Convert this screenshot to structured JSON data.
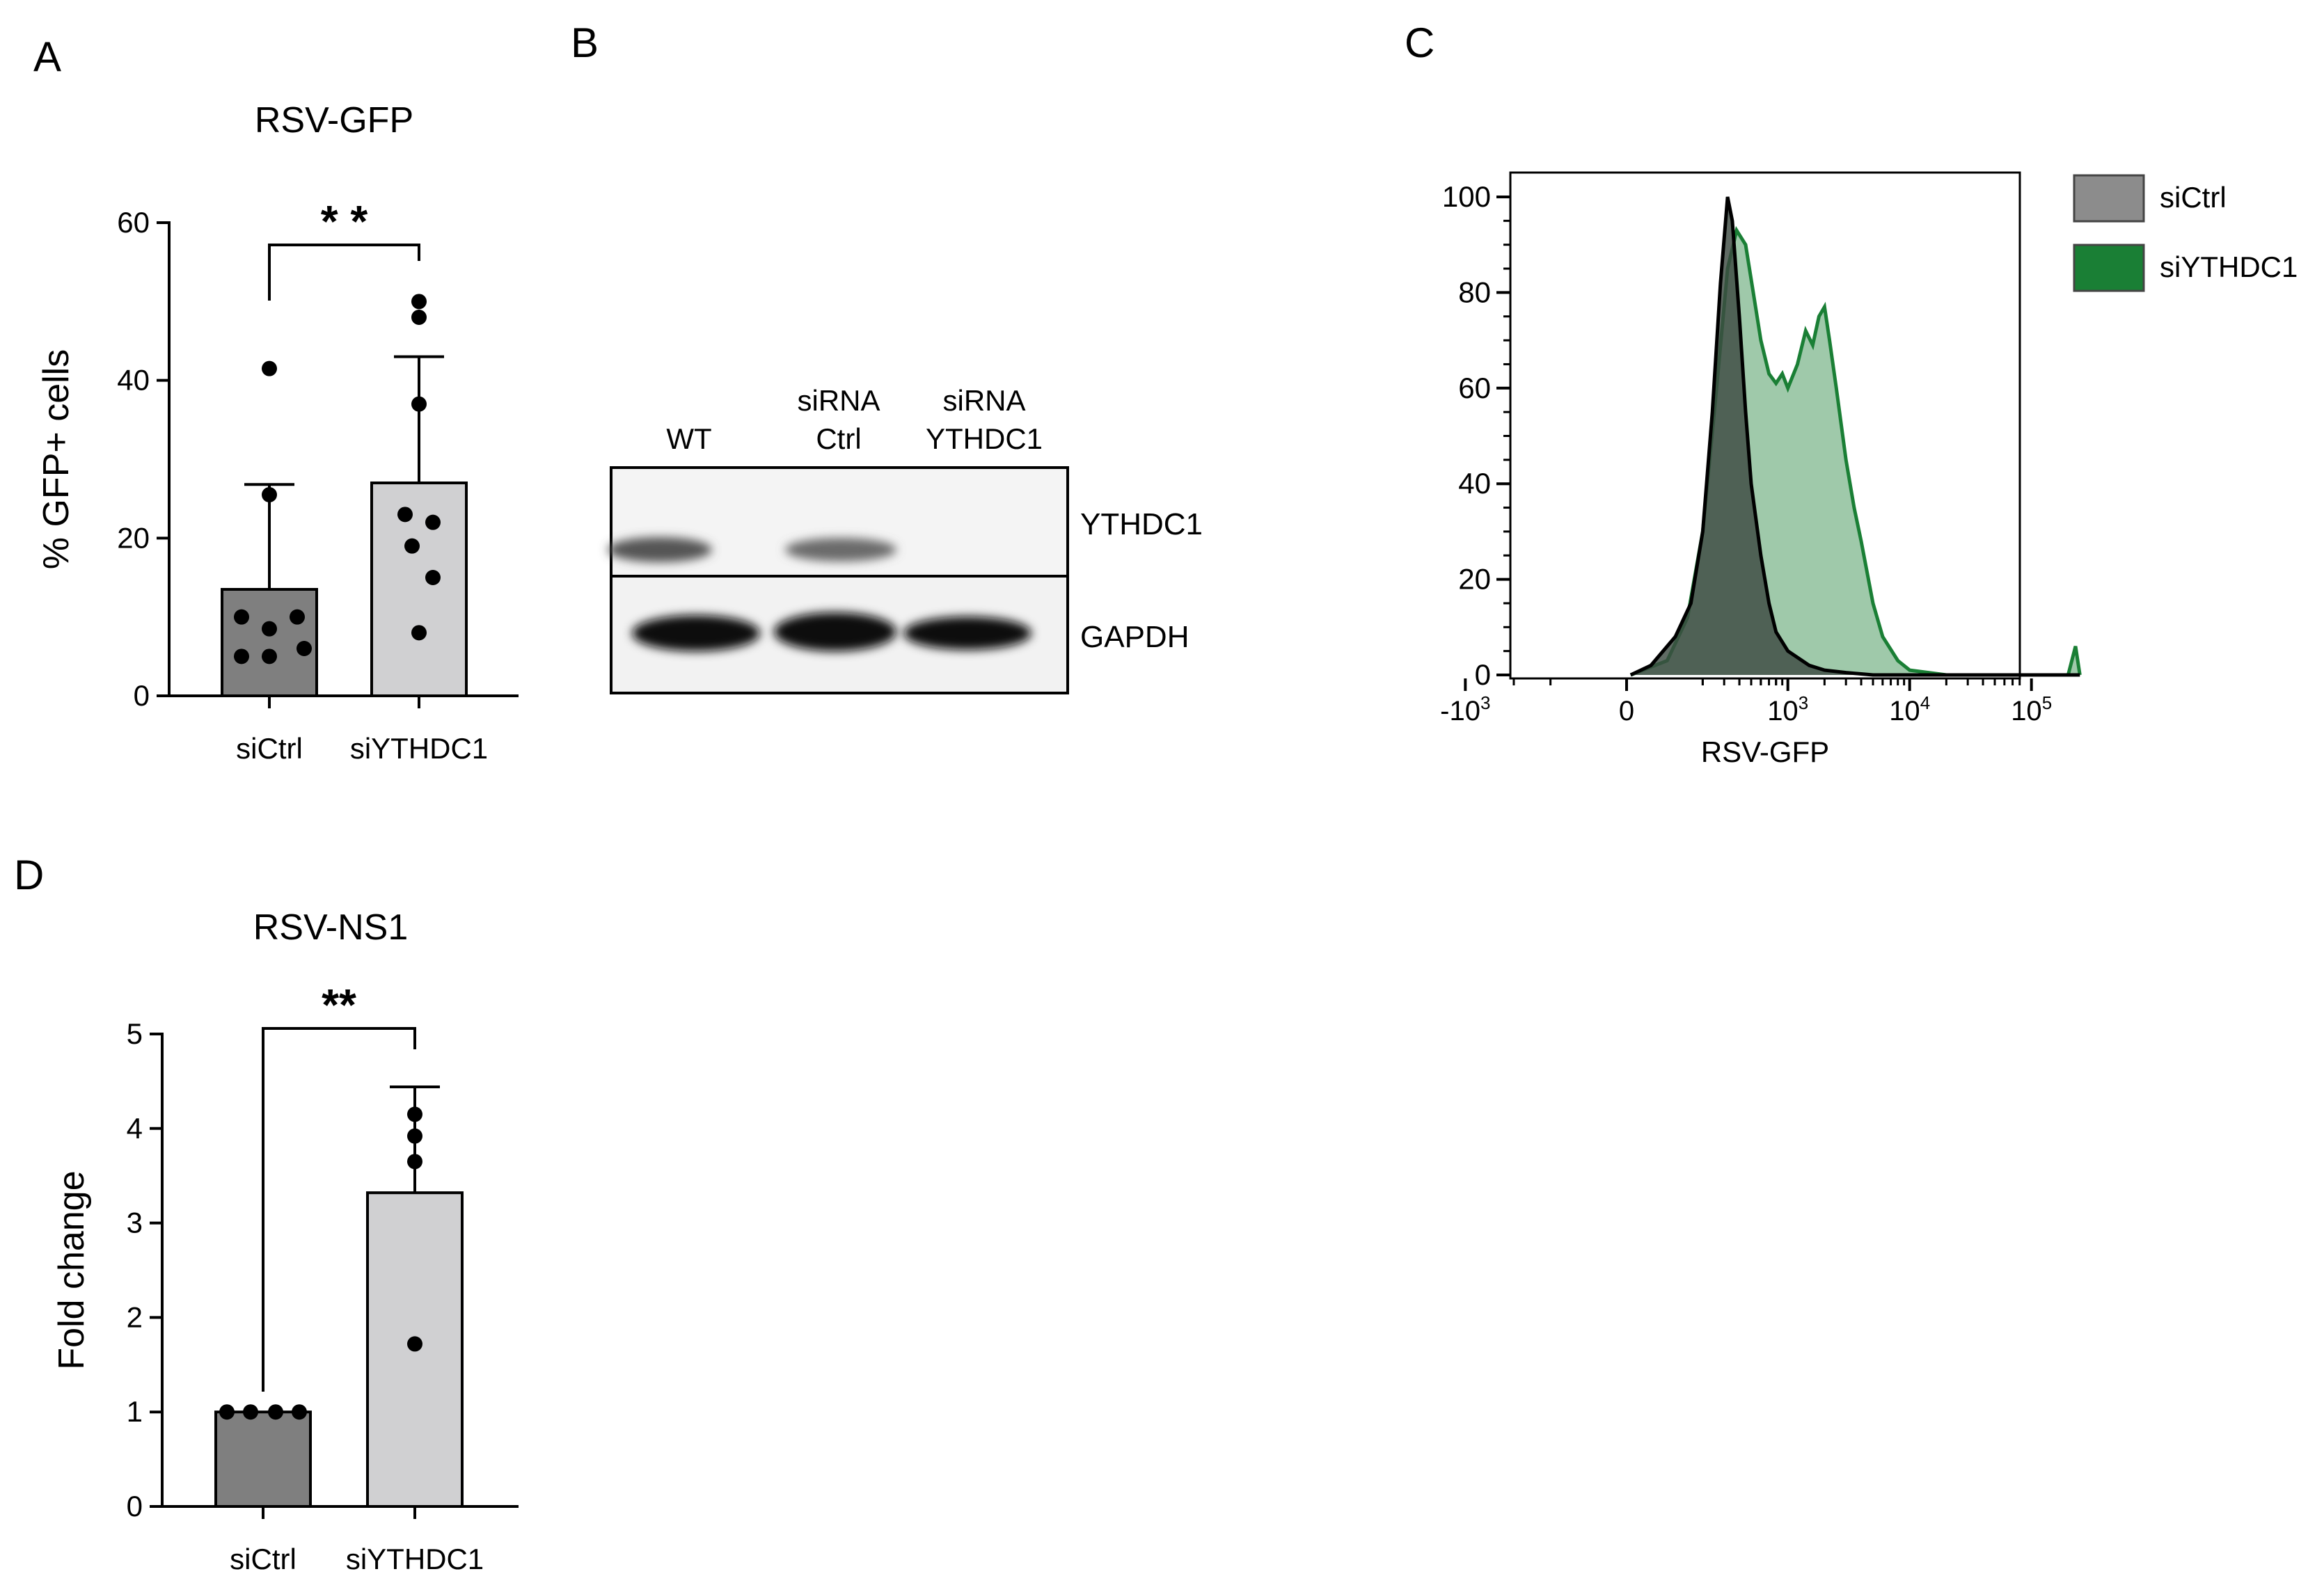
{
  "chart_data": [
    {
      "panel": "A",
      "type": "bar",
      "title": "RSV-GFP",
      "ylabel": "% GFP+ cells",
      "xlabel": "",
      "ylim": [
        0,
        60
      ],
      "yticks": [
        0,
        20,
        40,
        60
      ],
      "categories": [
        "siCtrl",
        "siYTHDC1"
      ],
      "values": [
        13.5,
        27.0
      ],
      "error": [
        13.3,
        16.0
      ],
      "points": [
        [
          41.5,
          25.5,
          10.0,
          10.0,
          8.5,
          6.0,
          5.0,
          5.0
        ],
        [
          50.0,
          48.0,
          37.0,
          23.0,
          22.0,
          19.0,
          15.0,
          8.0
        ]
      ],
      "bar_colors": [
        "#7f7f7f",
        "#d0d0d2"
      ],
      "significance": "* *"
    },
    {
      "panel": "B",
      "type": "blot",
      "lanes": [
        "WT",
        "siRNA\nCtrl",
        "siRNA\nYTHDC1"
      ],
      "bands": [
        "YTHDC1",
        "GAPDH"
      ]
    },
    {
      "panel": "C",
      "type": "area",
      "xlabel": "RSV-GFP",
      "ylabel": "",
      "ylim": [
        0,
        100
      ],
      "yticks": [
        0,
        20,
        40,
        60,
        80,
        100
      ],
      "xscale": "biexponential",
      "xticks": [
        "-10^3",
        "0",
        "10^3",
        "10^4",
        "10^5"
      ],
      "legend_position": "right",
      "series": [
        {
          "name": "siCtrl",
          "color": "#8c8c8c",
          "x": [
            10,
            60,
            120,
            160,
            200,
            240,
            280,
            320,
            350,
            400,
            450,
            500,
            600,
            700,
            800,
            1000,
            1500,
            2000,
            3000,
            5000,
            10000,
            100000,
            250000
          ],
          "y": [
            0,
            2,
            8,
            15,
            30,
            55,
            82,
            100,
            95,
            75,
            55,
            40,
            25,
            15,
            9,
            5,
            2,
            1,
            0.5,
            0,
            0,
            0,
            0
          ]
        },
        {
          "name": "siYTHDC1",
          "color": "#1a7f35",
          "x": [
            10,
            100,
            150,
            200,
            260,
            320,
            380,
            450,
            520,
            600,
            700,
            800,
            900,
            1000,
            1200,
            1400,
            1600,
            1800,
            2000,
            2200,
            2500,
            3000,
            3500,
            4000,
            5000,
            6000,
            8000,
            10000,
            20000,
            100000,
            200000,
            230000,
            250000
          ],
          "y": [
            0,
            3,
            12,
            30,
            60,
            85,
            93,
            90,
            80,
            70,
            63,
            61,
            63,
            60,
            65,
            72,
            69,
            75,
            77,
            70,
            60,
            45,
            35,
            28,
            15,
            8,
            3,
            1,
            0,
            0,
            0,
            6,
            0
          ]
        }
      ]
    },
    {
      "panel": "D",
      "type": "bar",
      "title": "RSV-NS1",
      "ylabel": "Fold change",
      "xlabel": "",
      "ylim": [
        0,
        5
      ],
      "yticks": [
        0,
        1,
        2,
        3,
        4,
        5
      ],
      "categories": [
        "siCtrl",
        "siYTHDC1"
      ],
      "values": [
        1.0,
        3.32
      ],
      "error": [
        0.0,
        1.12
      ],
      "points": [
        [
          1.0,
          1.0,
          1.0,
          1.0
        ],
        [
          4.15,
          3.92,
          3.65,
          1.72
        ]
      ],
      "bar_colors": [
        "#7f7f7f",
        "#d0d0d2"
      ],
      "significance": "**"
    }
  ],
  "panel_letters": [
    "A",
    "B",
    "C",
    "D"
  ],
  "colors": {
    "bar_dark": "#7f7f7f",
    "bar_light": "#d0d0d2",
    "sictrl_fill": "#8c8c8c",
    "siythdc1_fill": "#1a7f35"
  }
}
